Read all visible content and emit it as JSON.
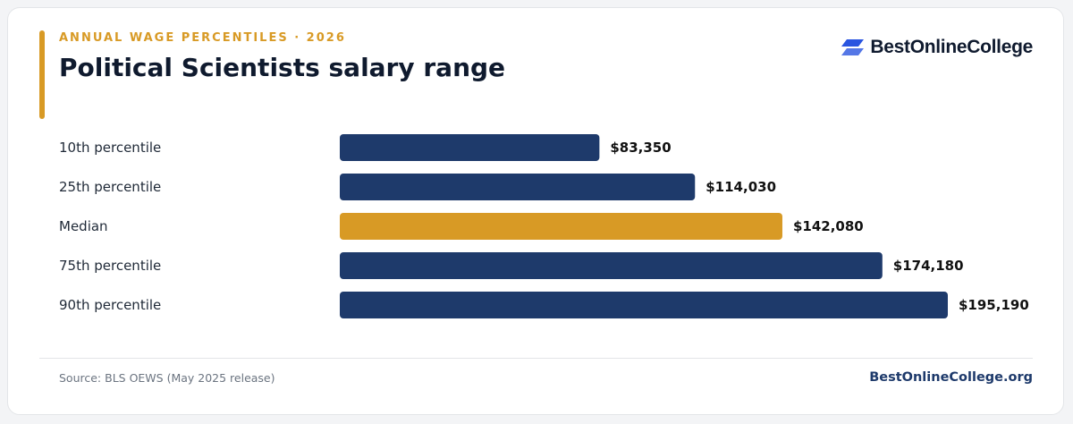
{
  "header": {
    "eyebrow": "ANNUAL WAGE PERCENTILES · 2026",
    "title": "Political Scientists salary range",
    "brand_name": "BestOnlineCollege",
    "brand_icon": "layered-chevron-logo-icon"
  },
  "footer": {
    "source": "Source: BLS OEWS (May 2025 release)",
    "site": "BestOnlineCollege.org"
  },
  "colors": {
    "accent": "#d89a25",
    "bar": "#1e3a6b",
    "highlight": "#d89a25",
    "title": "#0f1a2e",
    "label": "#1f2937",
    "logo": "#2a55e0"
  },
  "chart_data": {
    "type": "bar",
    "orientation": "horizontal",
    "categories": [
      "10th percentile",
      "25th percentile",
      "Median",
      "75th percentile",
      "90th percentile"
    ],
    "values": [
      83350,
      114030,
      142080,
      174180,
      195190
    ],
    "value_labels": [
      "$83,350",
      "$114,030",
      "$142,080",
      "$174,180",
      "$195,190"
    ],
    "highlight_category": "Median",
    "xlim": [
      0,
      195190
    ],
    "grid": false,
    "legend": "none"
  }
}
